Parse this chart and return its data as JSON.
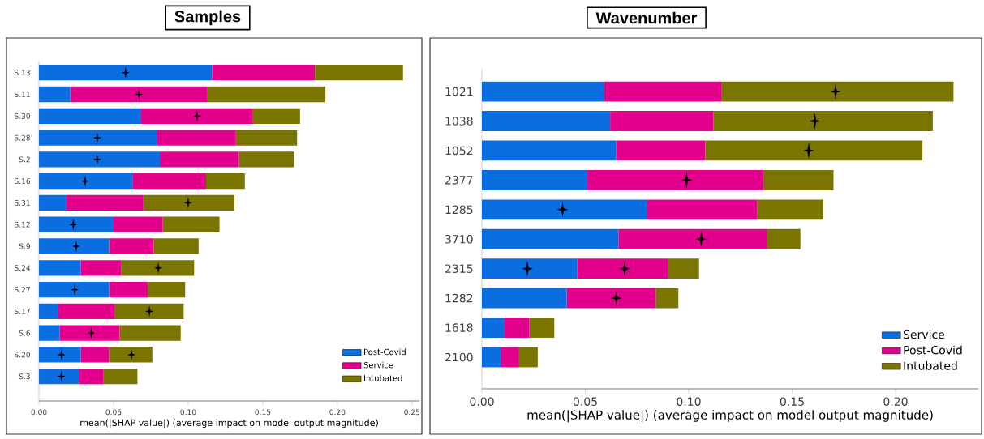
{
  "chart_data": [
    {
      "type": "bar",
      "orientation": "horizontal",
      "stacked": true,
      "title": "Samples",
      "categories": [
        "S.13",
        "S.11",
        "S.30",
        "S.28",
        "S.2",
        "S.16",
        "S.31",
        "S.12",
        "S.9",
        "S.24",
        "S.27",
        "S.17",
        "S.6",
        "S.20",
        "S.3"
      ],
      "series": [
        {
          "name": "Post-Covid",
          "color": "#0a6de0",
          "values": [
            0.116,
            0.021,
            0.068,
            0.079,
            0.081,
            0.063,
            0.018,
            0.05,
            0.047,
            0.028,
            0.047,
            0.013,
            0.014,
            0.028,
            0.027
          ]
        },
        {
          "name": "Service",
          "color": "#e3008c",
          "values": [
            0.069,
            0.092,
            0.075,
            0.053,
            0.053,
            0.049,
            0.052,
            0.033,
            0.03,
            0.027,
            0.026,
            0.038,
            0.04,
            0.019,
            0.016
          ]
        },
        {
          "name": "Intubated",
          "color": "#7a7400",
          "values": [
            0.059,
            0.079,
            0.032,
            0.041,
            0.037,
            0.026,
            0.061,
            0.038,
            0.03,
            0.049,
            0.025,
            0.046,
            0.041,
            0.029,
            0.023
          ]
        },
        {
          "type": "scatter",
          "marker": "star",
          "color": "#000000",
          "values": [
            0.058,
            0.067,
            0.106,
            0.039,
            0.039,
            0.031,
            0.1,
            0.023,
            0.025,
            0.08,
            0.024,
            0.074,
            0.035,
            0.015,
            0.015
          ]
        },
        {
          "type": "scatter",
          "marker": "star",
          "color": "#000000",
          "values": [
            null,
            null,
            null,
            null,
            null,
            null,
            null,
            null,
            null,
            null,
            null,
            null,
            null,
            0.062,
            null
          ]
        }
      ],
      "xlabel": "mean(|SHAP value|) (average impact on model output magnitude)",
      "xlim": [
        0,
        0.255
      ],
      "xticks": [
        {
          "value": 0,
          "label": "0.00"
        },
        {
          "value": 0.05,
          "label": "0.05"
        },
        {
          "value": 0.1,
          "label": "0.10"
        },
        {
          "value": 0.15,
          "label": "0.15"
        },
        {
          "value": 0.2,
          "label": "0.20"
        },
        {
          "value": 0.25,
          "label": "0.25"
        }
      ],
      "legend": "bottom right"
    },
    {
      "type": "bar",
      "orientation": "horizontal",
      "stacked": true,
      "title": "Wavenumber",
      "categories": [
        "1021",
        "1038",
        "1052",
        "2377",
        "1285",
        "3710",
        "2315",
        "1282",
        "1618",
        "2100"
      ],
      "series": [
        {
          "name": "Service",
          "color": "#0a6de0",
          "values": [
            0.059,
            0.062,
            0.065,
            0.051,
            0.08,
            0.066,
            0.046,
            0.041,
            0.011,
            0.009
          ]
        },
        {
          "name": "Post-Covid",
          "color": "#e3008c",
          "values": [
            0.057,
            0.05,
            0.043,
            0.085,
            0.053,
            0.072,
            0.044,
            0.043,
            0.012,
            0.009
          ]
        },
        {
          "name": "Intubated",
          "color": "#7a7400",
          "values": [
            0.112,
            0.106,
            0.105,
            0.034,
            0.032,
            0.016,
            0.015,
            0.011,
            0.012,
            0.009
          ]
        },
        {
          "type": "scatter",
          "marker": "star",
          "color": "#000000",
          "values": [
            0.171,
            0.161,
            0.158,
            0.099,
            0.039,
            0.106,
            0.022,
            0.065,
            null,
            null
          ]
        },
        {
          "type": "scatter",
          "marker": "star",
          "color": "#000000",
          "values": [
            null,
            null,
            null,
            null,
            null,
            null,
            0.069,
            null,
            null,
            null
          ]
        }
      ],
      "xlabel": "mean(|SHAP value|) (average impact on model output magnitude)",
      "xlim": [
        0,
        0.24
      ],
      "xticks": [
        {
          "value": 0,
          "label": "0.00"
        },
        {
          "value": 0.05,
          "label": "0.05"
        },
        {
          "value": 0.1,
          "label": "0.10"
        },
        {
          "value": 0.15,
          "label": "0.15"
        },
        {
          "value": 0.2,
          "label": "0.20"
        }
      ],
      "legend": "bottom right"
    }
  ]
}
